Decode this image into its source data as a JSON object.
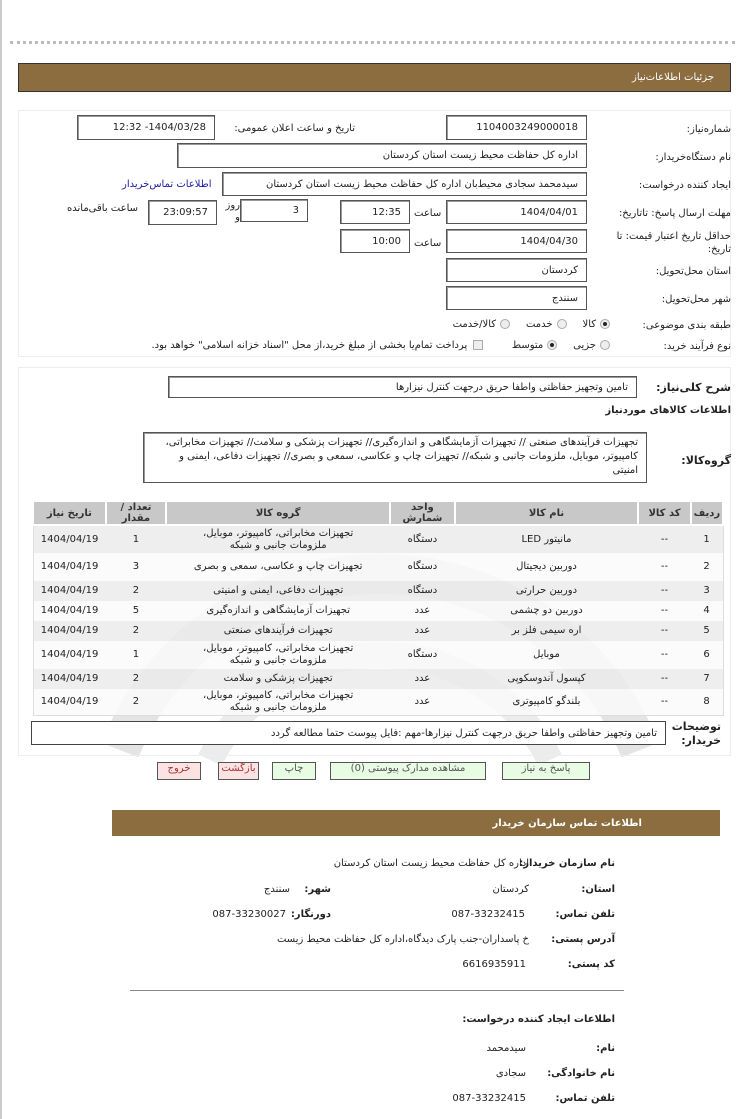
{
  "header": {
    "title": "جزئیات اطلاعات‌نیاز"
  },
  "form": {
    "need_number": {
      "label": "شماره‌نیاز:",
      "value": "1104003249000018"
    },
    "announce": {
      "label": "تاریخ و ساعت اعلان عمومی:",
      "value": "1404/03/28- 12:32"
    },
    "buyer_org": {
      "label": "نام دستگاه‌خریدار:",
      "value": "اداره کل حفاظت محیط زیست استان کردستان"
    },
    "creator": {
      "label": "ایجاد کننده درخواست:",
      "value": "سیدمحمد سجادی محیط‌بان اداره کل حفاظت محیط زیست استان کردستان",
      "link": "اطلاعات تماس‌خریدار"
    },
    "deadline": {
      "label": "مهلت ارسال پاسخ: تاتاریخ:",
      "date": "1404/04/01",
      "time_label": "ساعت",
      "time": "12:35",
      "days": "3",
      "days_label": "روز و",
      "remaining": "23:09:57",
      "remaining_label": "ساعت باقی‌مانده"
    },
    "validity": {
      "label": "حداقل تاریخ اعتبار قیمت: تا تاریخ:",
      "date": "1404/04/30",
      "time_label": "ساعت",
      "time": "10:00"
    },
    "province": {
      "label": "استان محل‌تحویل:",
      "value": "کردستان"
    },
    "city": {
      "label": "شهر محل‌تحویل:",
      "value": "سنندج"
    },
    "category": {
      "label": "طبقه بندی موضوعی:",
      "options": [
        "کالا",
        "خدمت",
        "کالا/خدمت"
      ],
      "selected": "کالا"
    },
    "process": {
      "label": "نوع فرآیند خرید:",
      "options": [
        "جزیی",
        "متوسط"
      ],
      "selected": "متوسط",
      "payment_note": "پرداخت تمام‌یا بخشی از مبلغ خرید،از محل \"اسناد خزانه اسلامی\" خواهد بود."
    }
  },
  "details": {
    "summary_label": "شرح کلی‌نیاز:",
    "summary": "تامین وتجهیز حفاظتی واطفا حریق درجهت کنترل نیزارها",
    "goods_title": "اطلاعات کالاهای موردنیاز",
    "group_label": "گروه‌کالا:",
    "groups": "تجهیزات فرآیندهای صنعتی // تجهیزات آزمایشگاهی و اندازه‌گیری// تجهیزات پزشکی و سلامت// تجهیزات مخابراتی، کامپیوتر، موبایل، ملزومات جانبی و شبکه// تجهیزات چاپ و عکاسی، سمعی و بصری// تجهیزات دفاعی، ایمنی و امنیتی",
    "table": {
      "headers": [
        "ردیف",
        "کد کالا",
        "نام کالا",
        "واحد شمارش",
        "گروه کالا",
        "تعداد / مقدار",
        "تاریخ نیاز"
      ],
      "rows": [
        [
          "1",
          "--",
          "مانیتور  LED",
          "دستگاه",
          "تجهیزات مخابراتی، کامپیوتر، موبایل، ملزومات جانبی و شبکه",
          "1",
          "1404/04/19"
        ],
        [
          "2",
          "--",
          "دوربین  دیجیتال",
          "دستگاه",
          "تجهیزات چاپ و عکاسی، سمعی و بصری",
          "3",
          "1404/04/19"
        ],
        [
          "3",
          "--",
          "دوربین حرارتی",
          "دستگاه",
          "تجهیزات دفاعی، ایمنی و امنیتی",
          "2",
          "1404/04/19"
        ],
        [
          "4",
          "--",
          "دوربین دو چشمی",
          "عدد",
          "تجهیزات آزمایشگاهی و اندازه‌گیری",
          "5",
          "1404/04/19"
        ],
        [
          "5",
          "--",
          "اره سیمی فلز بر",
          "عدد",
          "تجهیزات فرآیندهای  صنعتی",
          "2",
          "1404/04/19"
        ],
        [
          "6",
          "--",
          "موبایل",
          "دستگاه",
          "تجهیزات مخابراتی، کامپیوتر، موبایل، ملزومات جانبی و شبکه",
          "1",
          "1404/04/19"
        ],
        [
          "7",
          "--",
          "کپسول آندوسکوپی",
          "عدد",
          "تجهیزات پزشکی و سلامت",
          "2",
          "1404/04/19"
        ],
        [
          "8",
          "--",
          "بلندگو کامپیوتری",
          "عدد",
          "تجهیزات مخابراتی، کامپیوتر، موبایل، ملزومات جانبی و شبکه",
          "2",
          "1404/04/19"
        ]
      ]
    },
    "notes_label": "توضیحات خریدار:",
    "notes": "تامین وتجهیز حفاظتی واطفا حریق درجهت کنترل نیزارها-مهم :فایل پیوست حتما مطالعه گردد"
  },
  "buttons": {
    "reply": "پاسخ به نیاز",
    "attachments": "مشاهده مدارک پیوستی (0)",
    "print": "چاپ",
    "back": "بازگشت",
    "exit": "خروج"
  },
  "contact": {
    "title": "اطلاعات تماس  سازمان خریدار",
    "org_label": "نام سازمان خریدار:",
    "org": "اداره کل حفاظت محیط زیست استان کردستان",
    "province_label": "استان:",
    "province": "کردستان",
    "city_label": "شهر:",
    "city": "سنندج",
    "phone_label": "تلفن تماس:",
    "phone": "087-33232415",
    "fax_label": "دورنگار:",
    "fax": "087-33230027",
    "address_label": "آدرس پستی:",
    "address": "خ پاسداران-جنب پارک دیدگاه،اداره کل حفاظت محیط زیست",
    "postal_label": "کد پستی:",
    "postal": "6616935911"
  },
  "creator_info": {
    "title": "اطلاعات ایجاد کننده درخواست:",
    "name_label": "نام:",
    "name": "سیدمحمد",
    "family_label": "نام خانوادگی:",
    "family": "سجادی",
    "phone_label": "تلفن تماس:",
    "phone": "087-33232415"
  }
}
